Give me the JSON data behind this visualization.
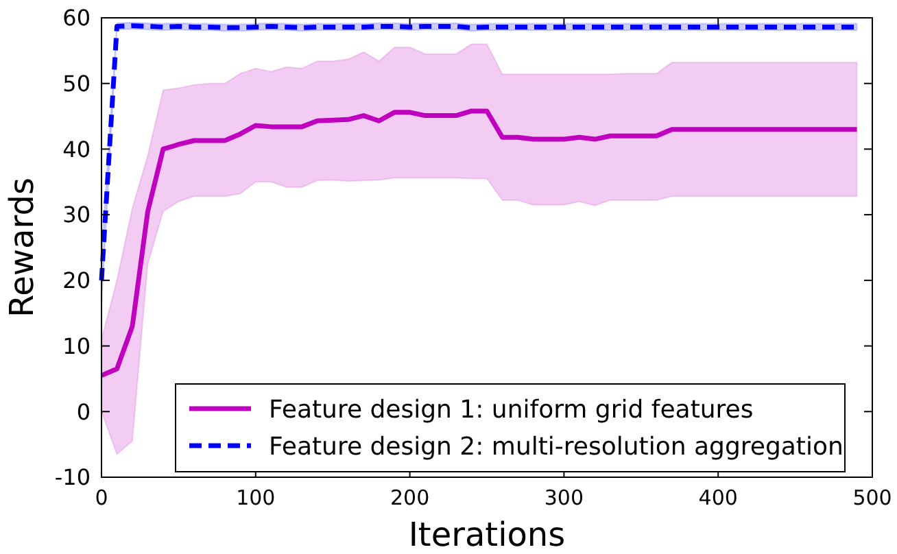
{
  "chart_data": {
    "type": "line",
    "xlabel": "Iterations",
    "ylabel": "Rewards",
    "xlim": [
      0,
      500
    ],
    "xticks": [
      0,
      100,
      200,
      300,
      400,
      500
    ],
    "ylim": [
      -10,
      60
    ],
    "yticks": [
      -10,
      0,
      10,
      20,
      30,
      40,
      50,
      60
    ],
    "grid": false,
    "legend": "bottom right",
    "x": [
      0,
      10,
      20,
      30,
      40,
      50,
      60,
      70,
      80,
      90,
      100,
      110,
      120,
      130,
      140,
      150,
      160,
      170,
      180,
      190,
      200,
      210,
      220,
      230,
      240,
      250,
      260,
      270,
      280,
      290,
      300,
      310,
      320,
      330,
      340,
      350,
      360,
      370,
      380,
      390,
      400,
      410,
      420,
      430,
      440,
      450,
      460,
      470,
      480,
      490
    ],
    "series": [
      {
        "name": "Feature design 1: uniform grid features",
        "color": "#bf00bf",
        "line_style": "solid",
        "values": [
          5.5,
          6.5,
          13,
          30.5,
          40,
          40.7,
          41.3,
          41.3,
          41.3,
          42.3,
          43.6,
          43.4,
          43.4,
          43.4,
          44.3,
          44.4,
          44.5,
          45.1,
          44.3,
          45.6,
          45.6,
          45.1,
          45.1,
          45.1,
          45.8,
          45.8,
          41.8,
          41.8,
          41.5,
          41.5,
          41.5,
          41.8,
          41.5,
          42,
          42,
          42,
          42,
          43,
          43,
          43,
          43,
          43,
          43,
          43,
          43,
          43,
          43,
          43,
          43,
          43
        ],
        "lower": [
          0,
          -6.5,
          -4.5,
          22.5,
          30.5,
          32,
          32.8,
          32.8,
          32.8,
          33.2,
          35,
          35,
          34.2,
          34.2,
          35.2,
          35.3,
          35.1,
          35.2,
          35.3,
          35.6,
          35.6,
          35.6,
          35.6,
          35.6,
          35.5,
          35.5,
          32.2,
          32.2,
          31.5,
          31.5,
          31.5,
          32,
          31.4,
          32.2,
          32.2,
          32.2,
          32.2,
          32.8,
          32.8,
          32.8,
          32.8,
          32.8,
          32.8,
          32.8,
          32.8,
          32.8,
          32.8,
          32.8,
          32.8,
          32.8
        ],
        "upper": [
          11,
          20,
          31,
          39,
          49,
          49.3,
          49.8,
          50,
          50,
          51.5,
          52.3,
          51.8,
          52.5,
          52.3,
          53.4,
          53.4,
          53.7,
          54.8,
          53.4,
          55.5,
          55.5,
          54.5,
          54.5,
          54.5,
          56,
          56,
          51.4,
          51.4,
          51.4,
          51.4,
          51.4,
          51.4,
          51.4,
          51.4,
          51.5,
          51.5,
          51.5,
          53.2,
          53.2,
          53.2,
          53.2,
          53.2,
          53.2,
          53.2,
          53.2,
          53.2,
          53.2,
          53.2,
          53.2,
          53.2
        ]
      },
      {
        "name": "Feature design 2: multi-resolution aggregation",
        "color": "#0000ff",
        "line_style": "dashed",
        "values": [
          20,
          58.7,
          58.8,
          58.7,
          58.6,
          58.7,
          58.6,
          58.6,
          58.5,
          58.5,
          58.6,
          58.7,
          58.6,
          58.5,
          58.6,
          58.6,
          58.6,
          58.6,
          58.7,
          58.7,
          58.6,
          58.7,
          58.7,
          58.7,
          58.5,
          58.6,
          58.6,
          58.6,
          58.6,
          58.6,
          58.6,
          58.6,
          58.6,
          58.6,
          58.6,
          58.6,
          58.6,
          58.6,
          58.6,
          58.6,
          58.6,
          58.6,
          58.6,
          58.6,
          58.6,
          58.6,
          58.6,
          58.6,
          58.6,
          58.6
        ],
        "lower": [
          16,
          58.2,
          58.3,
          58.2,
          58.1,
          58.2,
          58.1,
          58.1,
          58,
          58,
          58.1,
          58.2,
          58.1,
          58,
          58.1,
          58.1,
          58.1,
          58.1,
          58.2,
          58.2,
          58.1,
          58.2,
          58.2,
          58.2,
          58,
          58.1,
          58.1,
          58.1,
          58.1,
          58.1,
          58.1,
          58.1,
          58.1,
          58.1,
          58.1,
          58.1,
          58.1,
          58.1,
          58.1,
          58.1,
          58.1,
          58.1,
          58.1,
          58.1,
          58.1,
          58.1,
          58.1,
          58.1,
          58.1,
          58.1
        ],
        "upper": [
          24,
          59.2,
          59.3,
          59.2,
          59.1,
          59.2,
          59.1,
          59.1,
          59,
          59,
          59.1,
          59.2,
          59.1,
          59,
          59.1,
          59.1,
          59.1,
          59.1,
          59.2,
          59.2,
          59.1,
          59.2,
          59.2,
          59.2,
          59,
          59.1,
          59.1,
          59.1,
          59.1,
          59.1,
          59.1,
          59.1,
          59.1,
          59.1,
          59.1,
          59.1,
          59.1,
          59.1,
          59.1,
          59.1,
          59.1,
          59.1,
          59.1,
          59.1,
          59.1,
          59.1,
          59.1,
          59.1,
          59.1,
          59.1
        ]
      }
    ]
  }
}
